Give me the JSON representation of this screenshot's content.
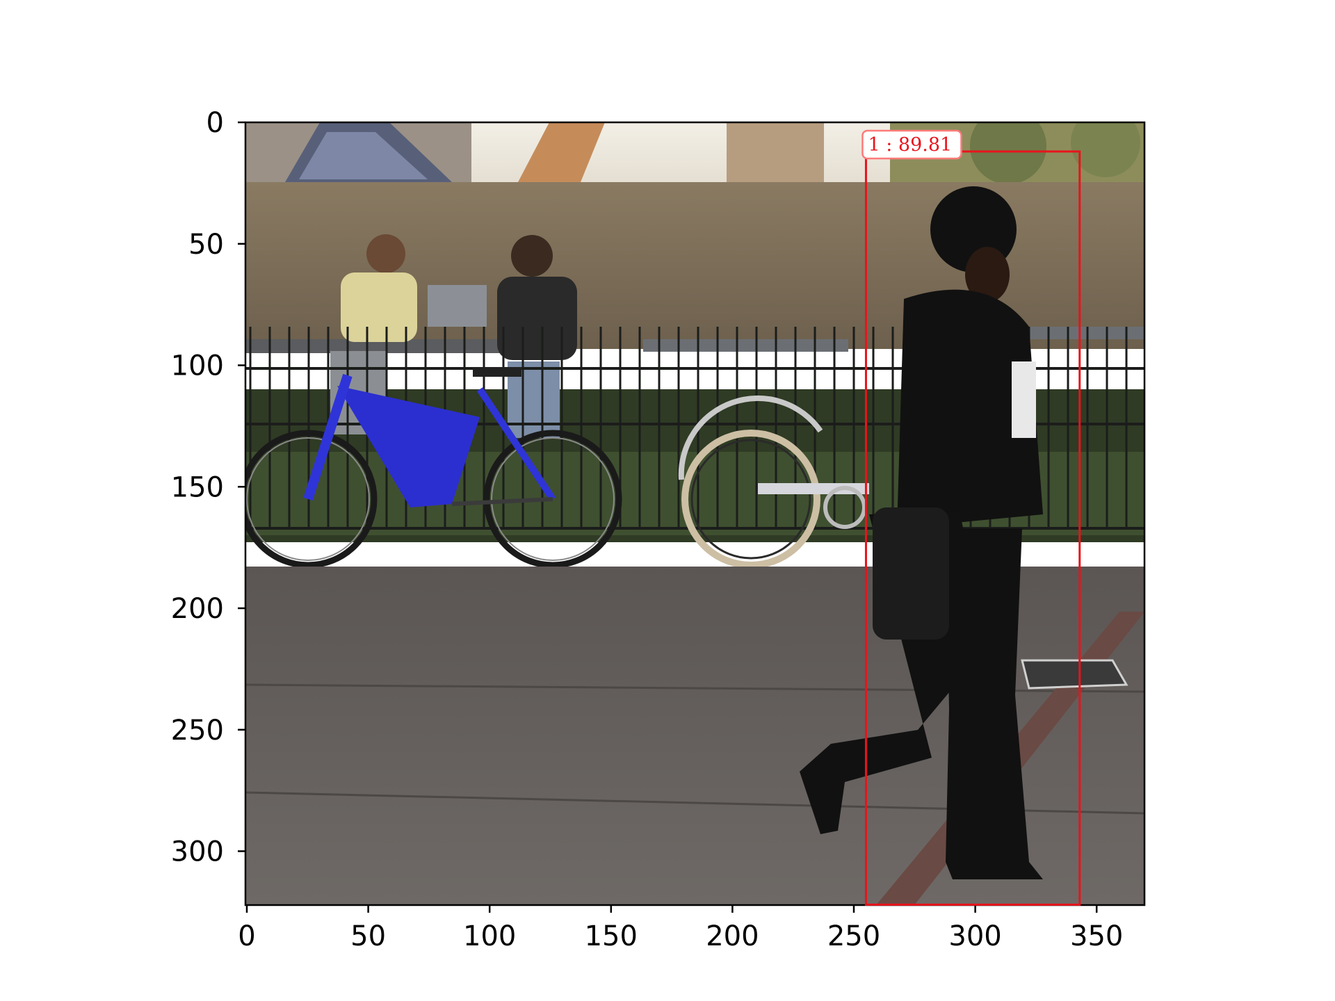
{
  "axes": {
    "x_ticks": [
      "0",
      "50",
      "100",
      "150",
      "200",
      "250",
      "300",
      "350"
    ],
    "y_ticks": [
      "0",
      "50",
      "100",
      "150",
      "200",
      "250",
      "300"
    ],
    "x_range": [
      0,
      370
    ],
    "y_range": [
      0,
      322
    ]
  },
  "detection": {
    "label": "1 : 89.81",
    "box": {
      "x_min": 255,
      "y_min": 12,
      "x_max": 343,
      "y_max": 322
    },
    "color": "#e8141c"
  },
  "scene": {
    "description_objects": [
      "building-and-wall",
      "seated-people",
      "blue-bicycle",
      "silver-bicycle",
      "railing",
      "walking-woman",
      "sidewalk",
      "drain-grate"
    ]
  }
}
